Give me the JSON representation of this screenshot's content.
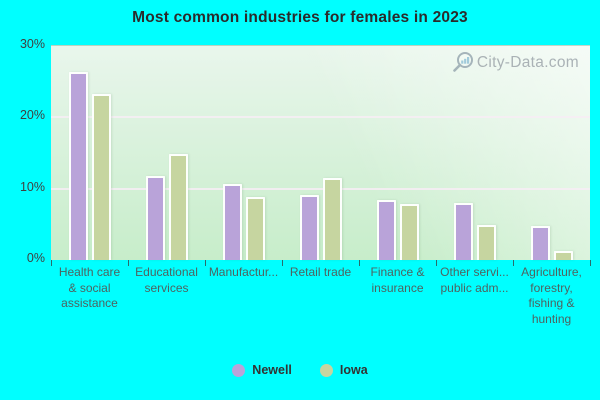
{
  "chart_data": {
    "type": "bar",
    "title": "Most common industries for females in 2023",
    "categories": [
      "Health care & social assistance",
      "Educational services",
      "Manufactur...",
      "Retail trade",
      "Finance & insurance",
      "Other servi... public adm...",
      "Agriculture, forestry, fishing & hunting"
    ],
    "category_lines": [
      [
        "Health care",
        "& social",
        "assistance"
      ],
      [
        "Educational",
        "services"
      ],
      [
        "Manufactur..."
      ],
      [
        "Retail trade"
      ],
      [
        "Finance &",
        "insurance"
      ],
      [
        "Other servi...",
        "public adm..."
      ],
      [
        "Agriculture,",
        "forestry,",
        "fishing &",
        "hunting"
      ]
    ],
    "series": [
      {
        "name": "Newell",
        "color": "#b9a3d9",
        "values": [
          26.3,
          11.8,
          10.7,
          9.1,
          8.4,
          8.0,
          4.7
        ]
      },
      {
        "name": "Iowa",
        "color": "#c6d5a0",
        "values": [
          23.3,
          14.9,
          8.8,
          11.5,
          7.9,
          4.9,
          1.2
        ]
      }
    ],
    "xlabel": "",
    "ylabel": "",
    "ylim": [
      0,
      30
    ],
    "yticks": [
      {
        "label": "0%",
        "value": 0
      },
      {
        "label": "10%",
        "value": 10
      },
      {
        "label": "20%",
        "value": 20
      },
      {
        "label": "30%",
        "value": 30
      }
    ],
    "grid": true,
    "legend_position": "bottom"
  },
  "watermark": {
    "text": "City-Data.com"
  },
  "colors": {
    "background": "#00ffff",
    "plot_top": "#e9f6ec",
    "plot_bottom": "#c7edca",
    "gridline": "#f7edf4",
    "bar_border": "#fdfffd",
    "title_text": "#2b2b2b",
    "axis_text": "#404040",
    "category_text": "#4e6360",
    "watermark_text": "#99a1a7"
  }
}
